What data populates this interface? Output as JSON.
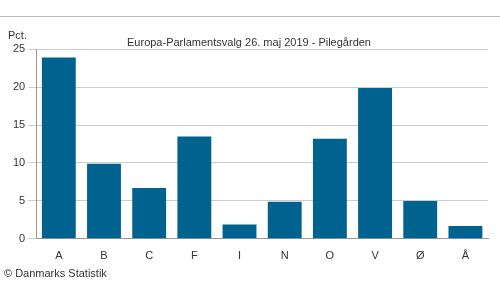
{
  "chart_data": {
    "type": "bar",
    "title": "Europa-Parlamentsvalg 26. maj 2019 - Pilegården",
    "y_label": "Pct.",
    "footer": "© Danmarks Statistik",
    "categories": [
      "A",
      "B",
      "C",
      "F",
      "I",
      "N",
      "O",
      "V",
      "Ø",
      "Å"
    ],
    "values": [
      23.9,
      9.9,
      6.7,
      13.5,
      1.9,
      4.9,
      13.2,
      19.9,
      5.0,
      1.7
    ],
    "color": "#00628f",
    "ylim": [
      0,
      25
    ],
    "yticks": [
      0,
      5,
      10,
      15,
      20,
      25
    ],
    "grid": true
  }
}
